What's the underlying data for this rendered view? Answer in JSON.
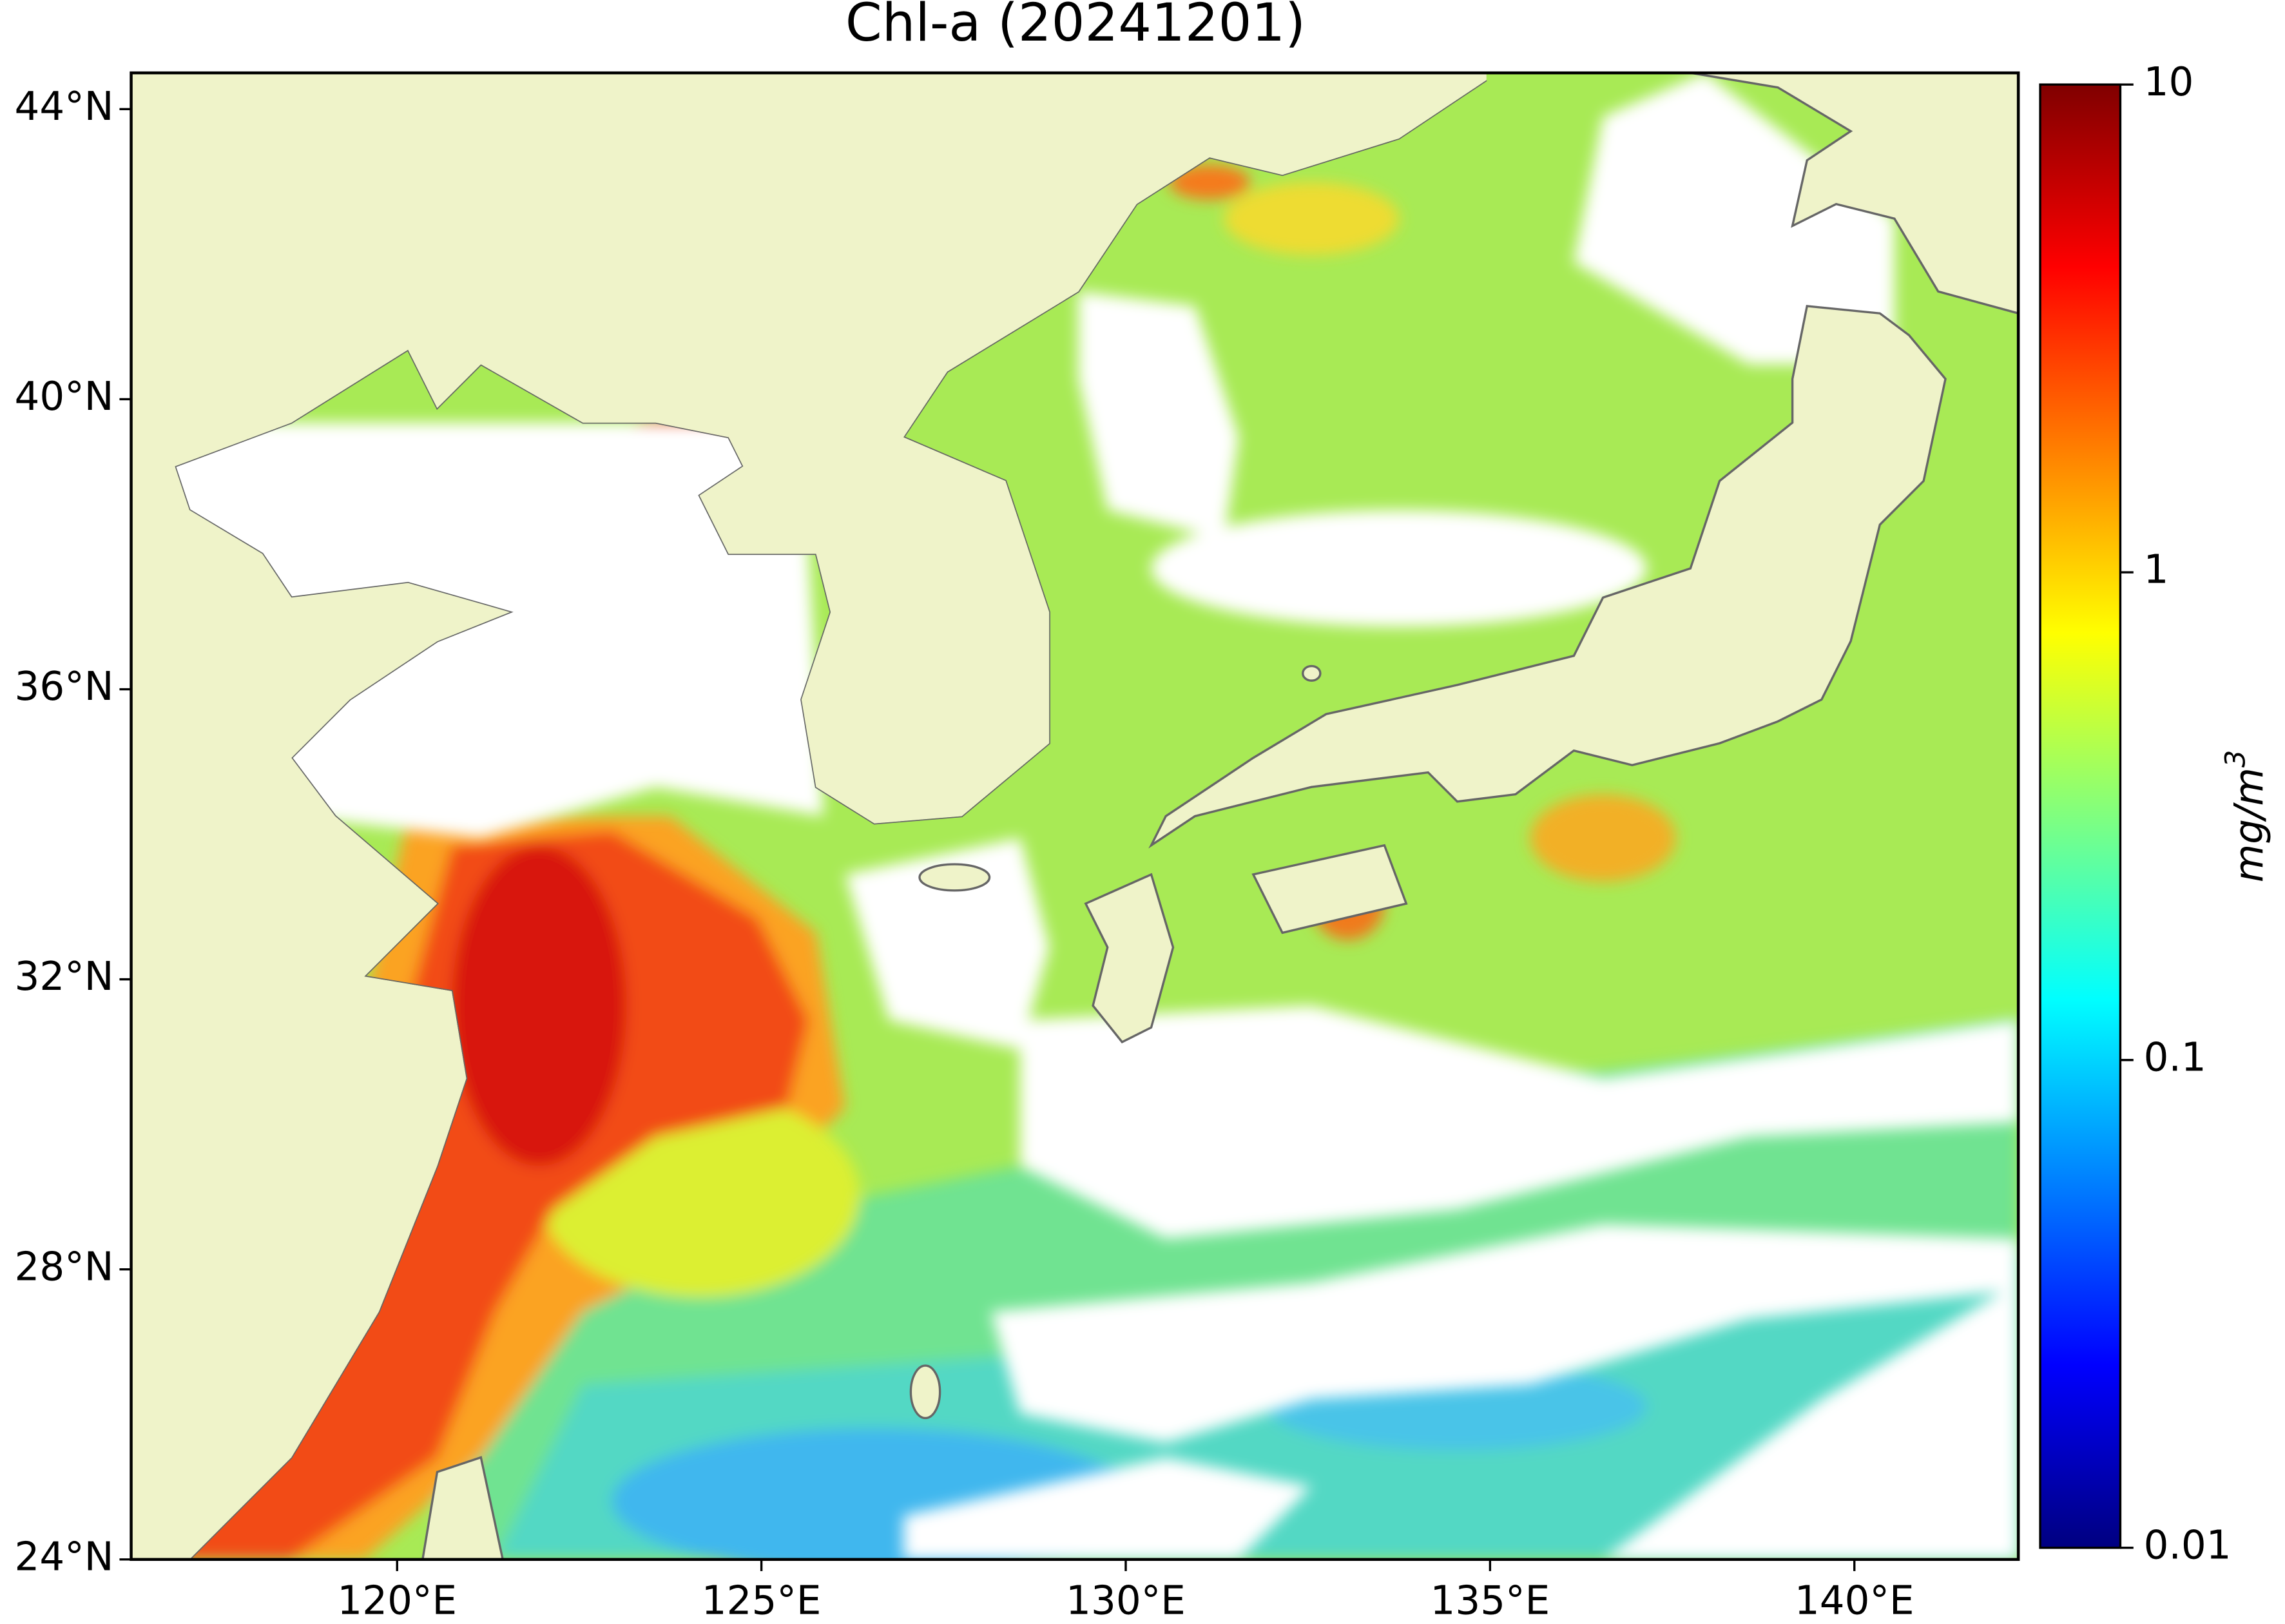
{
  "title": "Chl-a (20241201)",
  "map": {
    "lon_range": [
      116.35,
      142.25
    ],
    "lat_range": [
      24,
      44.5
    ],
    "xticks": [
      {
        "value": 120,
        "label": "120°E"
      },
      {
        "value": 125,
        "label": "125°E"
      },
      {
        "value": 130,
        "label": "130°E"
      },
      {
        "value": 135,
        "label": "135°E"
      },
      {
        "value": 140,
        "label": "140°E"
      }
    ],
    "yticks": [
      {
        "value": 24,
        "label": "24°N"
      },
      {
        "value": 28,
        "label": "28°N"
      },
      {
        "value": 32,
        "label": "32°N"
      },
      {
        "value": 36,
        "label": "36°N"
      },
      {
        "value": 40,
        "label": "40°N"
      },
      {
        "value": 44,
        "label": "44°N"
      }
    ],
    "land_color": "#eff3c9",
    "coastline_color": "#666666"
  },
  "colorbar": {
    "label": "mg/m",
    "label_sup": "3",
    "scale": "log",
    "lim": [
      0.01,
      10
    ],
    "ticks": [
      0.01,
      0.1,
      1,
      10
    ],
    "colormap": "jet"
  }
}
